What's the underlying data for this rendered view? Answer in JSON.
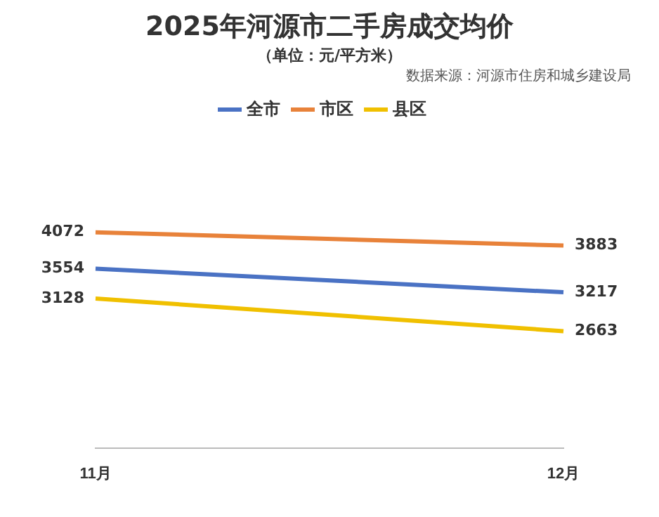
{
  "chart_data": {
    "type": "line",
    "title": "2025年河源市二手房成交均价",
    "subtitle": "（单位：元/平方米）",
    "annotations": [
      "数据来源：河源市住房和城乡建设局"
    ],
    "categories": [
      "11月",
      "12月"
    ],
    "series": [
      {
        "name": "全市",
        "color": "#4a72c4",
        "values": [
          3554,
          3217
        ]
      },
      {
        "name": "市区",
        "color": "#e8823a",
        "values": [
          4072,
          3883
        ]
      },
      {
        "name": "县区",
        "color": "#f0c000",
        "values": [
          3128,
          2663
        ]
      }
    ],
    "tick_labels": "x",
    "data_labels": true,
    "legend": "top",
    "grid": false,
    "marker": "none",
    "line_style": "solid"
  }
}
